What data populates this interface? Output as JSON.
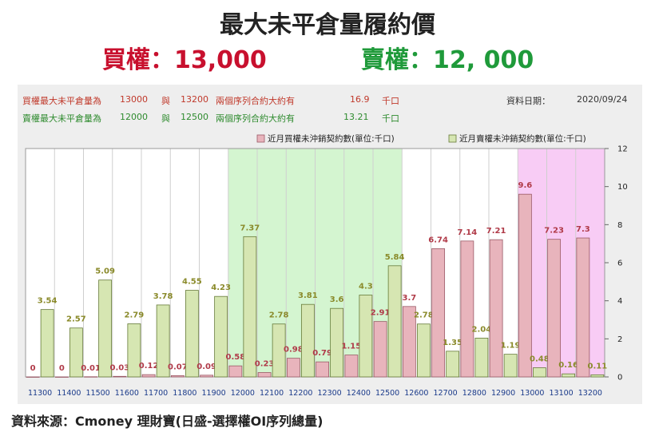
{
  "header": {
    "title": "最大未平倉量履約價",
    "call": "買權：13,000",
    "put": "賣權：12, 000"
  },
  "info": {
    "row1": {
      "label": "買權最大未平倉量為",
      "from": "13000",
      "conj": "與",
      "to": "13200",
      "text": "兩個序列合約大約有",
      "value": "16.9",
      "unit": "千口"
    },
    "row2": {
      "label": "賣權最大未平倉量為",
      "from": "12000",
      "conj": "與",
      "to": "12500",
      "text": "兩個序列合約大約有",
      "value": "13.21",
      "unit": "千口"
    },
    "date_label": "資料日期：",
    "date": "2020/09/24"
  },
  "source": "資料來源：Cmoney 理財寶(日盛-選擇權OI序列總量)",
  "colors": {
    "call_fill": "#e8b4bc",
    "call_stroke": "#9a5a66",
    "put_fill": "#d6e6b2",
    "put_stroke": "#667a38",
    "call_label": "#b03a48",
    "put_label": "#8a8a2a",
    "green_band": "#d4f5d0",
    "pink_band": "#f8ccf5"
  },
  "chart_data": {
    "type": "bar",
    "categories": [
      "11300",
      "11400",
      "11500",
      "11600",
      "11700",
      "11800",
      "11900",
      "12000",
      "12100",
      "12200",
      "12300",
      "12400",
      "12500",
      "12600",
      "12700",
      "12800",
      "12900",
      "13000",
      "13100",
      "13200"
    ],
    "series": [
      {
        "name": "近月買權未沖銷契約數(單位:千口)",
        "values": [
          0,
          0,
          0.01,
          0.03,
          0.12,
          0.07,
          0.09,
          0.58,
          0.23,
          0.98,
          0.79,
          1.15,
          2.91,
          3.7,
          6.74,
          7.14,
          7.21,
          9.6,
          7.23,
          7.3
        ]
      },
      {
        "name": "近月賣權未沖銷契約數(單位:千口)",
        "values": [
          3.54,
          2.57,
          5.09,
          2.79,
          3.78,
          4.55,
          4.23,
          7.37,
          2.78,
          3.81,
          3.6,
          4.3,
          5.84,
          2.78,
          1.35,
          2.04,
          1.19,
          0.48,
          0.16,
          0.11
        ]
      }
    ],
    "ylim": [
      0,
      12
    ],
    "yticks": [
      "0",
      "2",
      "4",
      "6",
      "8",
      "10",
      "12"
    ],
    "y_axis_side": "right",
    "highlight_ranges": [
      {
        "from": "12000",
        "to": "12500",
        "color": "green"
      },
      {
        "from": "13000",
        "to": "13200",
        "color": "pink"
      }
    ],
    "legend_position": "top-right",
    "grid": false
  }
}
